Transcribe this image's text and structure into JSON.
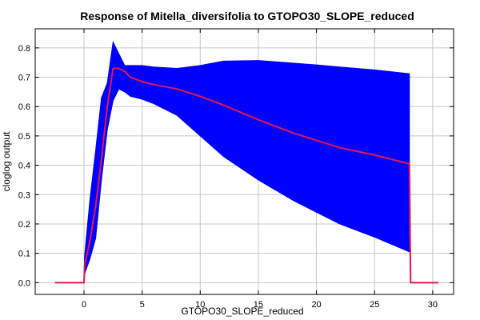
{
  "chart_data": {
    "type": "area",
    "title": "Response of Mitella_diversifolia to GTOPO30_SLOPE_reduced",
    "xlabel": "GTOPO30_SLOPE_reduced",
    "ylabel": "cloglog output",
    "xlim": [
      -4.2,
      31.8
    ],
    "ylim": [
      -0.04,
      0.865
    ],
    "xticks": [
      0,
      5,
      10,
      15,
      20,
      25,
      30
    ],
    "yticks": [
      0.0,
      0.1,
      0.2,
      0.3,
      0.4,
      0.5,
      0.6,
      0.7,
      0.8
    ],
    "grid": true,
    "colors": {
      "band": "#0000ff",
      "line": "#e8164c"
    },
    "series": [
      {
        "role": "mean",
        "x": [
          -2.5,
          0.0,
          0.05,
          0.5,
          1.0,
          1.5,
          2.0,
          2.5,
          3.0,
          3.5,
          4.0,
          5.0,
          6.0,
          8.0,
          10.0,
          12.0,
          15.0,
          18.0,
          20.0,
          22.0,
          25.0,
          28.0,
          28.1,
          30.5
        ],
        "y": [
          0.0,
          0.0,
          0.06,
          0.14,
          0.26,
          0.42,
          0.6,
          0.73,
          0.73,
          0.72,
          0.7,
          0.685,
          0.675,
          0.66,
          0.635,
          0.605,
          0.555,
          0.51,
          0.485,
          0.46,
          0.435,
          0.405,
          0.0,
          0.0
        ]
      },
      {
        "role": "band",
        "x": [
          0.0,
          0.05,
          0.5,
          1.0,
          1.5,
          2.0,
          2.5,
          3.0,
          3.5,
          4.0,
          5.0,
          6.0,
          8.0,
          10.0,
          12.0,
          15.0,
          18.0,
          20.0,
          22.0,
          25.0,
          28.0
        ],
        "upper": [
          0.0,
          0.09,
          0.28,
          0.45,
          0.63,
          0.68,
          0.82,
          0.78,
          0.74,
          0.74,
          0.74,
          0.735,
          0.73,
          0.74,
          0.755,
          0.757,
          0.748,
          0.742,
          0.735,
          0.725,
          0.712
        ],
        "lower": [
          0.0,
          0.03,
          0.08,
          0.15,
          0.35,
          0.52,
          0.62,
          0.66,
          0.65,
          0.635,
          0.625,
          0.61,
          0.57,
          0.5,
          0.43,
          0.35,
          0.28,
          0.24,
          0.2,
          0.155,
          0.105
        ]
      }
    ]
  }
}
